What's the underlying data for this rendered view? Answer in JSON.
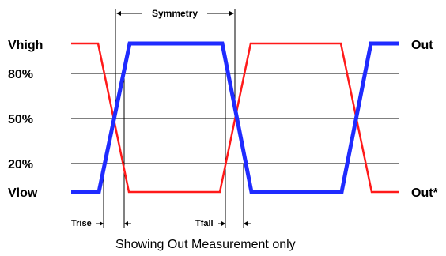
{
  "diagram": {
    "level_labels": {
      "vhigh": "Vhigh",
      "p80": "80%",
      "p50": "50%",
      "p20": "20%",
      "vlow": "Vlow"
    },
    "signal_labels": {
      "out": "Out",
      "out_complement": "Out*"
    },
    "interval_labels": {
      "symmetry": "Symmetry",
      "trise": "Trise",
      "tfall": "Tfall"
    },
    "caption": "Showing Out Measurement only",
    "colors": {
      "out": "#1f2bff",
      "out_complement": "#ff1a1a",
      "lines": "#000000"
    }
  }
}
